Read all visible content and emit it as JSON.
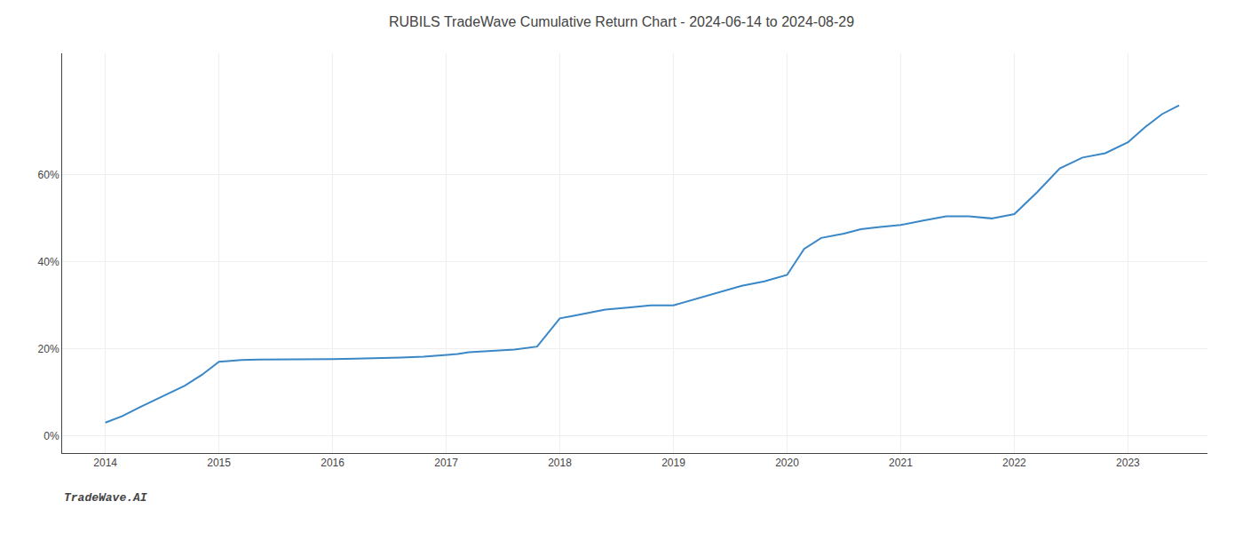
{
  "chart_data": {
    "type": "line",
    "title": "RUBILS TradeWave Cumulative Return Chart - 2024-06-14 to 2024-08-29",
    "annotations": [
      "TradeWave.AI"
    ],
    "x": [
      2014.0,
      2014.15,
      2014.3,
      2014.5,
      2014.7,
      2014.85,
      2015.0,
      2015.1,
      2015.2,
      2015.35,
      2015.5,
      2015.65,
      2015.8,
      2016.0,
      2016.2,
      2016.4,
      2016.6,
      2016.8,
      2017.0,
      2017.1,
      2017.2,
      2017.4,
      2017.6,
      2017.8,
      2018.0,
      2018.1,
      2018.2,
      2018.4,
      2018.6,
      2018.8,
      2019.0,
      2019.2,
      2019.4,
      2019.6,
      2019.8,
      2020.0,
      2020.15,
      2020.3,
      2020.5,
      2020.65,
      2020.8,
      2021.0,
      2021.2,
      2021.4,
      2021.6,
      2021.8,
      2022.0,
      2022.2,
      2022.4,
      2022.6,
      2022.8,
      2023.0,
      2023.15,
      2023.3,
      2023.45
    ],
    "values": [
      3.0,
      4.5,
      6.5,
      9.0,
      11.5,
      14.0,
      17.0,
      17.2,
      17.4,
      17.5,
      17.5,
      17.5,
      17.6,
      17.6,
      17.7,
      17.8,
      18.0,
      18.2,
      18.5,
      18.8,
      19.2,
      19.5,
      19.8,
      20.5,
      27.0,
      27.5,
      28.0,
      29.0,
      29.5,
      30.0,
      30.0,
      31.5,
      33.0,
      34.5,
      35.5,
      37.0,
      43.0,
      45.5,
      46.5,
      47.5,
      48.0,
      48.5,
      49.5,
      50.5,
      50.5,
      50.0,
      51.0,
      56.0,
      61.5,
      64.0,
      65.0,
      67.5,
      71.0,
      74.0,
      76.0
    ],
    "color": "#3a87c8",
    "xlim": [
      2013.62,
      2023.7
    ],
    "xticks": [
      2014,
      2015,
      2016,
      2017,
      2018,
      2019,
      2020,
      2021,
      2022,
      2023
    ],
    "ylim": [
      -4,
      88
    ],
    "yticks": [
      {
        "value": 0,
        "label": "0%"
      },
      {
        "value": 20,
        "label": "20%"
      },
      {
        "value": 40,
        "label": "40%"
      },
      {
        "value": 60,
        "label": "60%"
      }
    ],
    "grid": true
  }
}
